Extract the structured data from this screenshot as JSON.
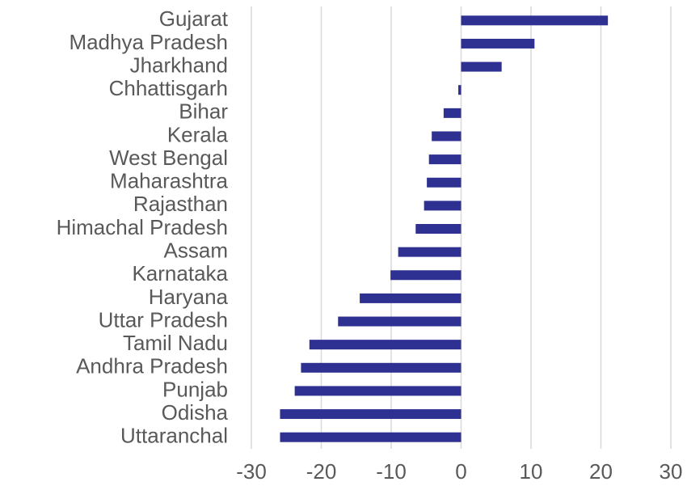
{
  "chart_data": {
    "type": "hbar",
    "categories": [
      "Gujarat",
      "Madhya Pradesh",
      "Jharkhand",
      "Chhattisgarh",
      "Bihar",
      "Kerala",
      "West Bengal",
      "Maharashtra",
      "Rajasthan",
      "Himachal Pradesh",
      "Assam",
      "Karnataka",
      "Haryana",
      "Uttar Pradesh",
      "Tamil Nadu",
      "Andhra Pradesh",
      "Punjab",
      "Odisha",
      "Uttaranchal"
    ],
    "values": [
      21,
      10.5,
      5.8,
      -0.4,
      -2.5,
      -4.2,
      -4.6,
      -4.9,
      -5.3,
      -6.5,
      -9,
      -10.1,
      -14.5,
      -17.6,
      -21.7,
      -22.9,
      -23.8,
      -25.9,
      -25.9
    ],
    "color": "#2e3192",
    "xlim": [
      -30,
      30
    ],
    "xticks": [
      -30,
      -20,
      -10,
      0,
      10,
      20,
      30
    ],
    "grid": true
  }
}
